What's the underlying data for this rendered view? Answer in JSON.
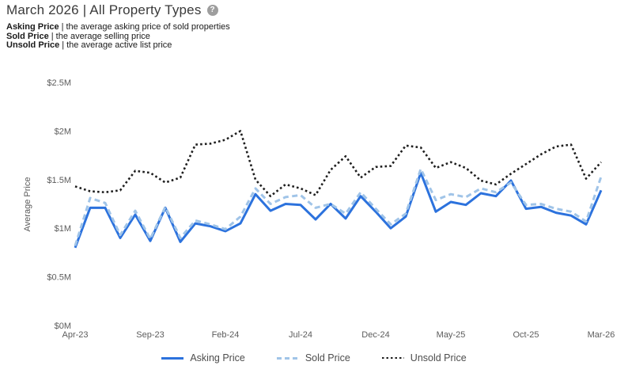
{
  "header": {
    "title": "March 2026 | All Property Types",
    "help_icon": "?",
    "definitions": [
      {
        "term": "Asking Price",
        "separator": "|",
        "description": "the average asking price of sold properties"
      },
      {
        "term": "Sold Price",
        "separator": "|",
        "description": "the average selling price"
      },
      {
        "term": "Unsold Price",
        "separator": "|",
        "description": "the average active list price"
      }
    ]
  },
  "chart_data": {
    "type": "line",
    "title": "",
    "xlabel": "",
    "ylabel": "Average Price",
    "unit": "USD millions",
    "ylim": [
      0,
      2.5
    ],
    "grid": false,
    "legend_position": "bottom",
    "y_ticks": [
      {
        "label": "$2.5M",
        "value": 2.5
      },
      {
        "label": "$2M",
        "value": 2.0
      },
      {
        "label": "$1.5M",
        "value": 1.5
      },
      {
        "label": "$1M",
        "value": 1.0
      },
      {
        "label": "$0.5M",
        "value": 0.5
      },
      {
        "label": "$0M",
        "value": 0.0
      }
    ],
    "x_tick_labels": [
      "Apr-23",
      "Sep-23",
      "Feb-24",
      "Jul-24",
      "Dec-24",
      "May-25",
      "Oct-25",
      "Mar-26"
    ],
    "x": [
      "Apr-23",
      "May-23",
      "Jun-23",
      "Jul-23",
      "Aug-23",
      "Sep-23",
      "Oct-23",
      "Nov-23",
      "Dec-23",
      "Jan-24",
      "Feb-24",
      "Mar-24",
      "Apr-24",
      "May-24",
      "Jun-24",
      "Jul-24",
      "Aug-24",
      "Sep-24",
      "Oct-24",
      "Nov-24",
      "Dec-24",
      "Jan-25",
      "Feb-25",
      "Mar-25",
      "Apr-25",
      "May-25",
      "Jun-25",
      "Jul-25",
      "Aug-25",
      "Sep-25",
      "Oct-25",
      "Nov-25",
      "Dec-25",
      "Jan-26",
      "Feb-26",
      "Mar-26"
    ],
    "series": [
      {
        "name": "Asking Price",
        "style": "solid",
        "color": "#2c72dd",
        "values_m": [
          0.8,
          1.21,
          1.21,
          0.9,
          1.14,
          0.87,
          1.21,
          0.86,
          1.05,
          1.02,
          0.97,
          1.05,
          1.35,
          1.18,
          1.25,
          1.24,
          1.09,
          1.25,
          1.1,
          1.33,
          1.17,
          1.0,
          1.12,
          1.57,
          1.17,
          1.27,
          1.24,
          1.36,
          1.33,
          1.49,
          1.2,
          1.22,
          1.16,
          1.13,
          1.04,
          1.39
        ]
      },
      {
        "name": "Sold Price",
        "style": "dashed",
        "color": "#a0c4e8",
        "values_m": [
          0.82,
          1.31,
          1.26,
          0.93,
          1.18,
          0.89,
          1.22,
          0.9,
          1.08,
          1.04,
          0.99,
          1.12,
          1.41,
          1.25,
          1.32,
          1.34,
          1.21,
          1.25,
          1.15,
          1.37,
          1.2,
          1.04,
          1.15,
          1.61,
          1.29,
          1.35,
          1.32,
          1.41,
          1.37,
          1.47,
          1.24,
          1.25,
          1.2,
          1.17,
          1.07,
          1.53
        ]
      },
      {
        "name": "Unsold Price",
        "style": "dotted",
        "color": "#1f1f1f",
        "values_m": [
          1.43,
          1.38,
          1.37,
          1.39,
          1.59,
          1.57,
          1.47,
          1.52,
          1.86,
          1.87,
          1.91,
          2.0,
          1.5,
          1.33,
          1.45,
          1.41,
          1.34,
          1.6,
          1.74,
          1.52,
          1.63,
          1.64,
          1.85,
          1.83,
          1.62,
          1.68,
          1.62,
          1.49,
          1.45,
          1.56,
          1.66,
          1.76,
          1.84,
          1.86,
          1.51,
          1.68
        ]
      }
    ]
  }
}
